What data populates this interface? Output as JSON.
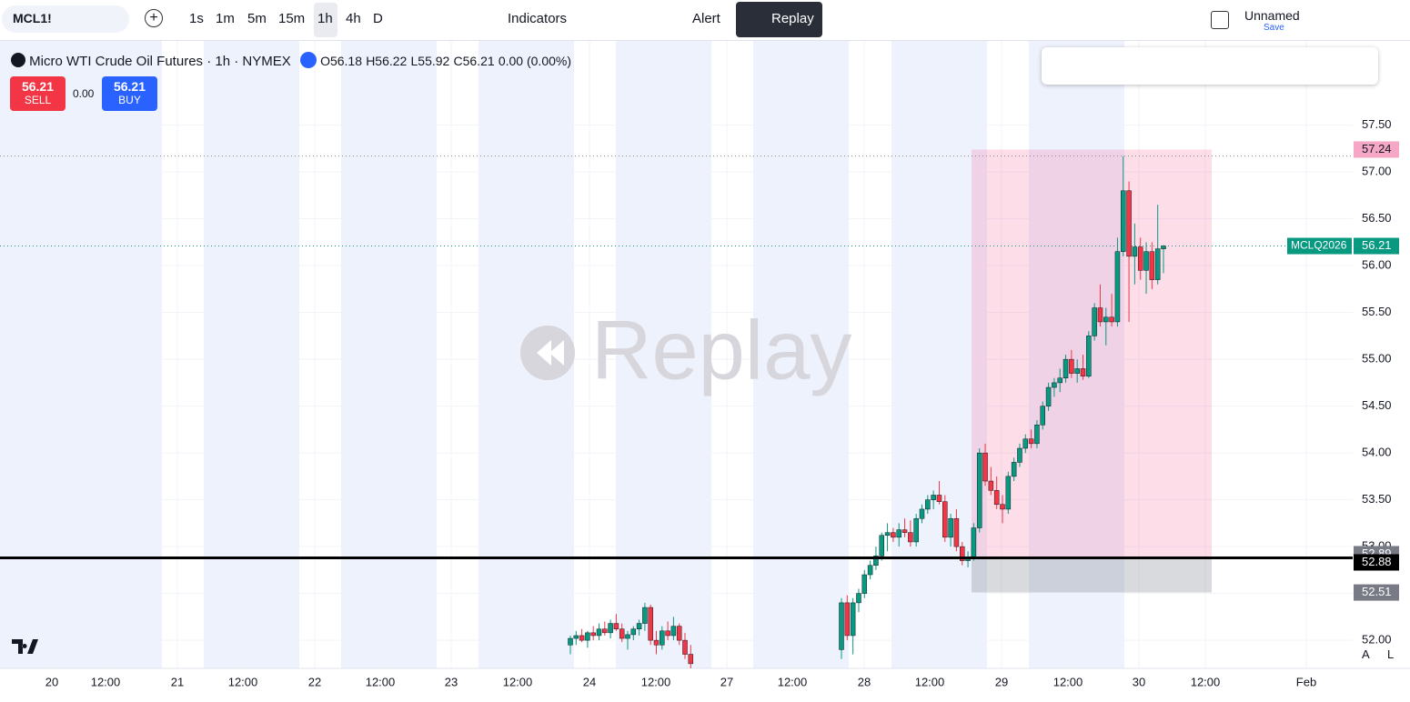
{
  "toolbar": {
    "symbol": "MCL1!",
    "intervals": [
      "1s",
      "1m",
      "5m",
      "15m",
      "1h",
      "4h",
      "D"
    ],
    "indicators": "Indicators",
    "alert": "Alert",
    "replay": "Replay",
    "layout_name": "Unnamed",
    "save": "Save"
  },
  "legend": {
    "title": "Micro WTI Crude Oil Futures · 1h · NYMEX",
    "open": "O56.18",
    "high": "H56.22",
    "low": "L55.92",
    "close": "C56.21",
    "change": "0.00 (0.00%)"
  },
  "trade": {
    "sell_price": "56.21",
    "sell": "SELL",
    "spread": "0.00",
    "buy_price": "56.21",
    "buy": "BUY"
  },
  "watermark": "Replay",
  "axis_buttons": [
    "A",
    "L"
  ],
  "chart_data": {
    "type": "candlestick",
    "ylim": [
      51.7,
      58.4
    ],
    "yticks": [
      {
        "value": 52.0,
        "label": "52.00"
      },
      {
        "value": 52.5,
        "label": "52.50"
      },
      {
        "value": 53.0,
        "label": "53.00"
      },
      {
        "value": 53.5,
        "label": "53.50"
      },
      {
        "value": 54.0,
        "label": "54.00"
      },
      {
        "value": 54.5,
        "label": "54.50"
      },
      {
        "value": 55.0,
        "label": "55.00"
      },
      {
        "value": 55.5,
        "label": "55.50"
      },
      {
        "value": 56.0,
        "label": "56.00"
      },
      {
        "value": 56.5,
        "label": "56.50"
      },
      {
        "value": 57.0,
        "label": "57.00"
      },
      {
        "value": 57.5,
        "label": "57.50"
      }
    ],
    "xticks": [
      "20",
      "12:00",
      "21",
      "12:00",
      "22",
      "12:00",
      "23",
      "12:00",
      "24",
      "12:00",
      "27",
      "12:00",
      "28",
      "12:00",
      "29",
      "12:00",
      "30",
      "12:00",
      "Feb"
    ],
    "up_color": "#089981",
    "down_color": "#f23645",
    "session_1": [
      [
        51.95,
        52.05,
        51.85,
        52.02
      ],
      [
        52.02,
        52.1,
        51.95,
        52.05
      ],
      [
        52.05,
        52.12,
        51.98,
        52.0
      ],
      [
        52.0,
        52.1,
        51.92,
        52.08
      ],
      [
        52.08,
        52.15,
        52.0,
        52.05
      ],
      [
        52.05,
        52.18,
        52.0,
        52.12
      ],
      [
        52.12,
        52.2,
        52.05,
        52.08
      ],
      [
        52.08,
        52.22,
        52.02,
        52.18
      ],
      [
        52.18,
        52.28,
        52.1,
        52.12
      ],
      [
        52.12,
        52.18,
        51.98,
        52.02
      ],
      [
        52.02,
        52.1,
        51.9,
        52.06
      ],
      [
        52.06,
        52.15,
        52.0,
        52.12
      ],
      [
        52.12,
        52.22,
        52.05,
        52.18
      ],
      [
        52.18,
        52.4,
        52.1,
        52.35
      ],
      [
        52.35,
        52.38,
        51.95,
        52.0
      ],
      [
        52.0,
        52.1,
        51.85,
        51.95
      ],
      [
        51.95,
        52.15,
        51.9,
        52.1
      ],
      [
        52.1,
        52.2,
        52.0,
        52.05
      ],
      [
        52.05,
        52.25,
        52.0,
        52.15
      ],
      [
        52.15,
        52.18,
        51.95,
        52.0
      ],
      [
        52.0,
        52.08,
        51.8,
        51.85
      ],
      [
        51.85,
        51.95,
        51.7,
        51.75
      ]
    ],
    "session_2": [
      [
        51.9,
        52.45,
        51.8,
        52.4
      ],
      [
        52.4,
        52.48,
        52.0,
        52.05
      ],
      [
        52.05,
        52.45,
        51.85,
        52.4
      ],
      [
        52.4,
        52.55,
        52.3,
        52.5
      ],
      [
        52.5,
        52.75,
        52.45,
        52.7
      ],
      [
        52.7,
        52.85,
        52.65,
        52.8
      ],
      [
        52.8,
        53.0,
        52.75,
        52.9
      ],
      [
        52.9,
        53.15,
        52.85,
        53.12
      ],
      [
        53.12,
        53.25,
        52.95,
        53.15
      ],
      [
        53.15,
        53.2,
        53.05,
        53.1
      ],
      [
        53.1,
        53.25,
        53.0,
        53.18
      ],
      [
        53.18,
        53.3,
        53.1,
        53.15
      ],
      [
        53.15,
        53.28,
        53.0,
        53.05
      ],
      [
        53.05,
        53.35,
        53.0,
        53.3
      ],
      [
        53.3,
        53.45,
        53.25,
        53.4
      ],
      [
        53.4,
        53.55,
        53.35,
        53.5
      ],
      [
        53.5,
        53.6,
        53.4,
        53.55
      ],
      [
        53.55,
        53.7,
        53.45,
        53.48
      ],
      [
        53.48,
        53.55,
        53.05,
        53.1
      ],
      [
        53.1,
        53.35,
        53.0,
        53.3
      ],
      [
        53.3,
        53.4,
        52.95,
        53.0
      ],
      [
        53.0,
        53.05,
        52.8,
        52.85
      ],
      [
        52.85,
        52.95,
        52.78,
        52.88
      ],
      [
        52.88,
        53.25,
        52.85,
        53.2
      ],
      [
        53.2,
        54.05,
        53.15,
        54.0
      ],
      [
        54.0,
        54.1,
        53.65,
        53.7
      ],
      [
        53.7,
        53.85,
        53.55,
        53.6
      ],
      [
        53.6,
        53.75,
        53.4,
        53.45
      ],
      [
        53.45,
        53.55,
        53.25,
        53.4
      ],
      [
        53.4,
        53.8,
        53.35,
        53.75
      ],
      [
        53.75,
        53.95,
        53.7,
        53.9
      ],
      [
        53.9,
        54.1,
        53.85,
        54.05
      ],
      [
        54.05,
        54.2,
        54.0,
        54.15
      ],
      [
        54.15,
        54.25,
        54.05,
        54.1
      ],
      [
        54.1,
        54.35,
        54.05,
        54.3
      ],
      [
        54.3,
        54.55,
        54.25,
        54.5
      ],
      [
        54.5,
        54.75,
        54.45,
        54.7
      ],
      [
        54.7,
        54.8,
        54.6,
        54.75
      ],
      [
        54.75,
        54.9,
        54.65,
        54.8
      ],
      [
        54.8,
        55.05,
        54.75,
        55.0
      ],
      [
        55.0,
        55.1,
        54.8,
        54.85
      ],
      [
        54.85,
        55.0,
        54.75,
        54.9
      ],
      [
        54.9,
        55.05,
        54.78,
        54.82
      ],
      [
        54.82,
        55.3,
        54.8,
        55.25
      ],
      [
        55.25,
        55.6,
        55.2,
        55.55
      ],
      [
        55.55,
        55.8,
        55.35,
        55.4
      ],
      [
        55.4,
        55.55,
        55.15,
        55.45
      ],
      [
        55.45,
        55.7,
        55.35,
        55.4
      ],
      [
        55.4,
        56.3,
        55.35,
        56.15
      ],
      [
        56.15,
        57.17,
        56.1,
        56.8
      ],
      [
        56.8,
        56.9,
        55.4,
        56.1
      ],
      [
        56.1,
        56.45,
        55.8,
        56.2
      ],
      [
        56.2,
        56.3,
        55.85,
        55.95
      ],
      [
        55.95,
        56.25,
        55.7,
        56.15
      ],
      [
        56.15,
        56.25,
        55.75,
        55.85
      ],
      [
        55.85,
        56.65,
        55.8,
        56.18
      ],
      [
        56.18,
        56.22,
        55.92,
        56.21
      ]
    ],
    "levels": {
      "target": 57.24,
      "last": 56.21,
      "last_symbol": "MCLQ2026",
      "entry": 52.89,
      "line": 52.88,
      "stop": 52.51
    }
  }
}
